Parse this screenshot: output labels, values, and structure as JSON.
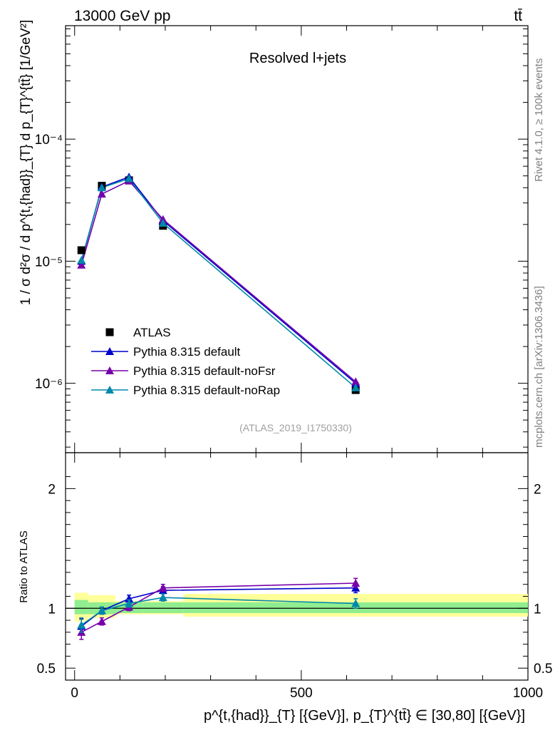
{
  "header": {
    "energy_label": "13000 GeV pp",
    "process_label": "tt̄",
    "plot_title": "Resolved l+jets",
    "analysis_id": "(ATLAS_2019_I1750330)",
    "side_label_top": "Rivet 4.1.0, ≥ 100k events",
    "side_label_bottom": "mcplots.cern.ch [arXiv:1306.3436]"
  },
  "chart_data": [
    {
      "panel": "main",
      "type": "scatter",
      "yscale": "log",
      "ylabel": "1 / σ d²σ / d p^{t,{had}}_{T} d p_{T}^{tt̄} [1/GeV²]",
      "xlim": [
        -20,
        1000
      ],
      "ylim": [
        2.7e-07,
        0.00085
      ],
      "y_tick_labels": [
        "10⁻⁶",
        "10⁻⁵",
        "10⁻⁴"
      ],
      "y_tick_values": [
        1e-06,
        1e-05,
        0.0001
      ],
      "x": [
        15,
        60,
        120,
        195,
        620
      ],
      "series": [
        {
          "name": "ATLAS",
          "color": "#000000",
          "marker": "square",
          "values": [
            1.23e-05,
            4.15e-05,
            4.6e-05,
            1.95e-05,
            8.8e-07
          ]
        },
        {
          "name": "Pythia 8.315 default",
          "color": "#0000cc",
          "marker": "triangle",
          "values": [
            1e-05,
            4.05e-05,
            4.9e-05,
            2.15e-05,
            1e-06
          ]
        },
        {
          "name": "Pythia 8.315 default-noFsr",
          "color": "#7700aa",
          "marker": "triangle",
          "values": [
            9.3e-06,
            3.55e-05,
            4.55e-05,
            2.2e-05,
            1.03e-06
          ]
        },
        {
          "name": "Pythia 8.315 default-noRap",
          "color": "#0088aa",
          "marker": "triangle",
          "values": [
            1.02e-05,
            4e-05,
            4.75e-05,
            2.05e-05,
            9.2e-07
          ]
        }
      ]
    },
    {
      "panel": "ratio",
      "type": "line",
      "ylabel": "Ratio to ATLAS",
      "xlabel": "p^{t,{had}}_{T} [{GeV}], p_{T}^{tt̄} ∈ [30,80] [{GeV}]",
      "xlim": [
        -20,
        1000
      ],
      "ylim": [
        0.4,
        2.3
      ],
      "x_ticks": [
        0,
        500,
        1000
      ],
      "x_tick_labels": [
        "0",
        "500",
        "1000"
      ],
      "y_ticks": [
        0.5,
        1,
        2
      ],
      "y_tick_labels": [
        "0.5",
        "1",
        "2"
      ],
      "x": [
        15,
        60,
        120,
        195,
        620
      ],
      "series": [
        {
          "name": "Pythia 8.315 default",
          "color": "#0000cc",
          "values": [
            0.85,
            0.98,
            1.08,
            1.15,
            1.17
          ],
          "errors": [
            0.06,
            0.03,
            0.03,
            0.03,
            0.04
          ]
        },
        {
          "name": "Pythia 8.315 default-noFsr",
          "color": "#7700aa",
          "values": [
            0.8,
            0.89,
            1.01,
            1.17,
            1.21
          ],
          "errors": [
            0.06,
            0.03,
            0.03,
            0.03,
            0.04
          ]
        },
        {
          "name": "Pythia 8.315 default-noRap",
          "color": "#0088aa",
          "values": [
            0.86,
            0.98,
            1.04,
            1.09,
            1.04
          ],
          "errors": [
            0.06,
            0.03,
            0.03,
            0.03,
            0.04
          ]
        }
      ],
      "bands": [
        {
          "x_lo": 0,
          "x_hi": 30,
          "stat_lo": 0.95,
          "stat_hi": 1.07,
          "tot_lo": 0.89,
          "tot_hi": 1.13
        },
        {
          "x_lo": 30,
          "x_hi": 90,
          "stat_lo": 0.95,
          "stat_hi": 1.05,
          "tot_lo": 0.92,
          "tot_hi": 1.11
        },
        {
          "x_lo": 90,
          "x_hi": 150,
          "stat_lo": 0.96,
          "stat_hi": 1.05,
          "tot_lo": 0.95,
          "tot_hi": 1.06
        },
        {
          "x_lo": 150,
          "x_hi": 240,
          "stat_lo": 0.96,
          "stat_hi": 1.05,
          "tot_lo": 0.95,
          "tot_hi": 1.06
        },
        {
          "x_lo": 240,
          "x_hi": 1000,
          "stat_lo": 0.96,
          "stat_hi": 1.05,
          "tot_lo": 0.93,
          "tot_hi": 1.12
        }
      ]
    }
  ]
}
